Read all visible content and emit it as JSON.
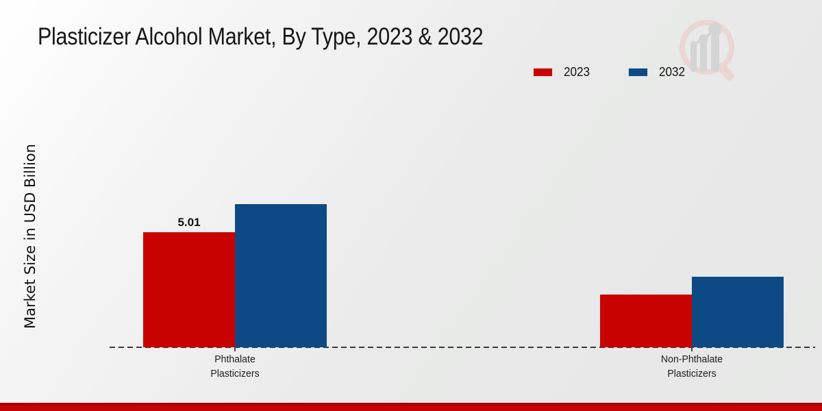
{
  "header": {
    "title": "Plasticizer Alcohol Market, By Type, 2023 & 2032"
  },
  "y_axis": {
    "label": "Market Size in USD Billion"
  },
  "legend": {
    "position": "top-right"
  },
  "footer": {
    "bar_color": "#c50504"
  },
  "logo": {
    "name": "magnifier-bar-chart-watermark",
    "ring_color": "#ecd5d5",
    "bars_color": "#d4d4d4"
  },
  "chart_data": {
    "type": "bar",
    "title": "Plasticizer Alcohol Market, By Type, 2023 & 2032",
    "xlabel": "",
    "ylabel": "Market Size in USD Billion",
    "categories": [
      "Phthalate Plasticizers",
      "Non-Phthalate Plasticizers"
    ],
    "category_label_lines": [
      [
        "Phthalate",
        "Plasticizers"
      ],
      [
        "Non-Phthalate",
        "Plasticizers"
      ]
    ],
    "series": [
      {
        "name": "2023",
        "color": "#c80201",
        "values": [
          5.01,
          2.3
        ]
      },
      {
        "name": "2032",
        "color": "#0d4a85",
        "values": [
          6.23,
          3.07
        ]
      }
    ],
    "value_labels": [
      {
        "series_index": 0,
        "category_index": 0,
        "text": "5.01"
      }
    ],
    "ylim": [
      0,
      7
    ],
    "grid": false,
    "legend_position": "top-right",
    "baseline_style": "dashed"
  }
}
